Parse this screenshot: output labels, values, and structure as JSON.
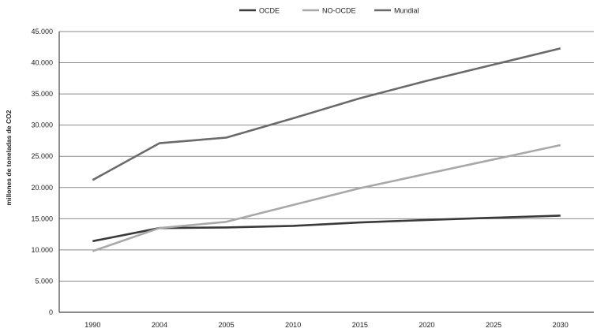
{
  "chart_data": {
    "type": "line",
    "title": "",
    "xlabel": "",
    "ylabel": "millones de toneladas de CO2",
    "categories": [
      "1990",
      "2004",
      "2005",
      "2010",
      "2015",
      "2020",
      "2025",
      "2030"
    ],
    "ylim": [
      0,
      45000
    ],
    "y_ticks": [
      "0",
      "5.000",
      "10.000",
      "15.000",
      "20.000",
      "25.000",
      "30.000",
      "35.000",
      "40.000",
      "45.000"
    ],
    "grid": true,
    "legend_position": "top",
    "series": [
      {
        "name": "OCDE",
        "color": "#3a3a3a",
        "values": [
          11400,
          13500,
          13600,
          13850,
          14400,
          14800,
          15150,
          15500
        ]
      },
      {
        "name": "NO-OCDE",
        "color": "#a8a8a8",
        "values": [
          9800,
          13500,
          14500,
          17200,
          19900,
          22200,
          24500,
          26800
        ]
      },
      {
        "name": "Mundial",
        "color": "#6a6a6a",
        "values": [
          21200,
          27100,
          28000,
          31100,
          34300,
          37100,
          39700,
          42300
        ]
      }
    ]
  }
}
